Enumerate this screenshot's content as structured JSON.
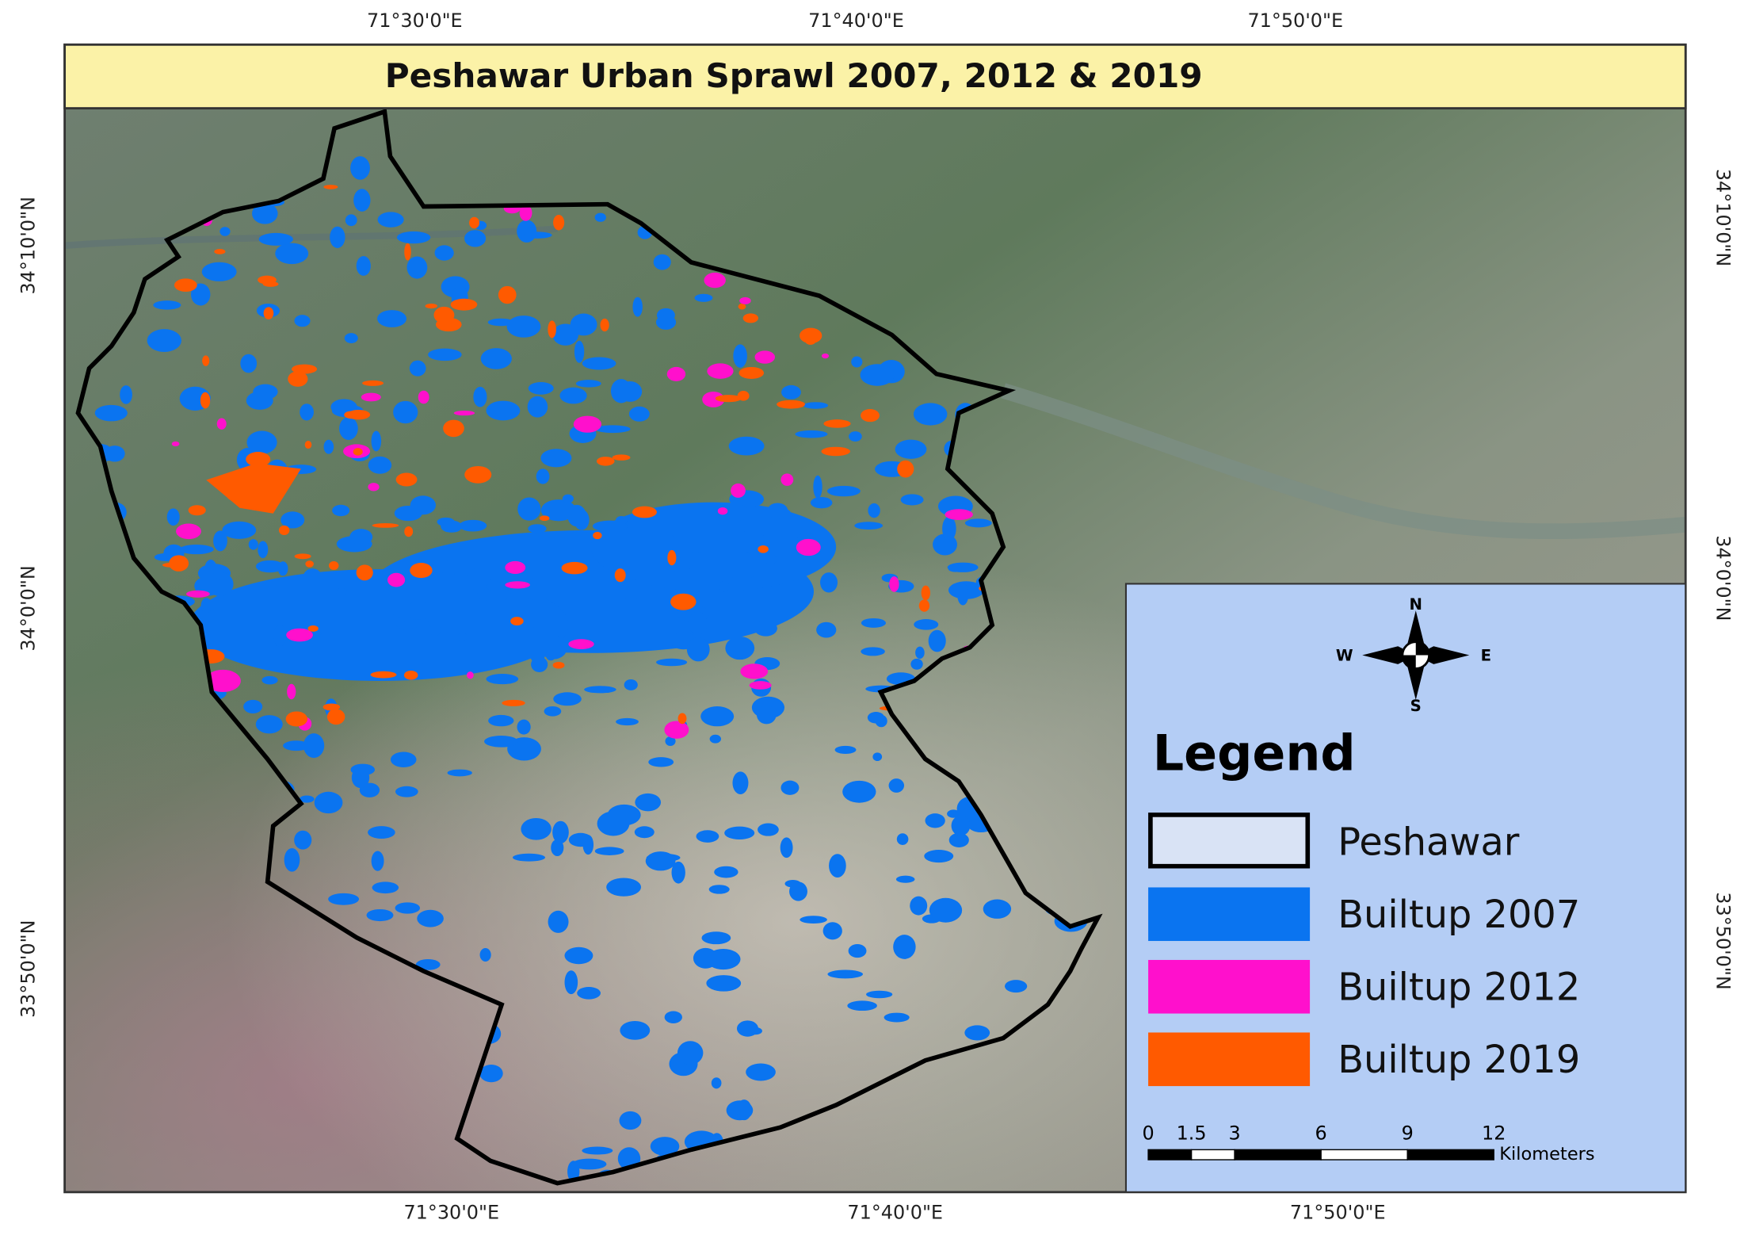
{
  "title": "Peshawar Urban Sprawl 2007, 2012 & 2019",
  "map": {
    "top_labels": [
      "71°30'0\"E",
      "71°40'0\"E",
      "71°50'0\"E"
    ],
    "bottom_labels": [
      "71°30'0\"E",
      "71°40'0\"E",
      "71°50'0\"E"
    ],
    "left_labels": [
      "34°10'0\"N",
      "34°0'0\"N",
      "33°50'0\"N"
    ],
    "right_labels": [
      "34°10'0\"N",
      "34°0'0\"N",
      "33°50'0\"N"
    ]
  },
  "compass": {
    "n": "N",
    "e": "E",
    "s": "S",
    "w": "W"
  },
  "legend": {
    "title": "Legend",
    "items": [
      {
        "label": "Peshawar",
        "color": "#000000"
      },
      {
        "label": "Builtup 2007",
        "color": "#0a74f0"
      },
      {
        "label": "Builtup 2012",
        "color": "#ff10cc"
      },
      {
        "label": "Builtup 2019",
        "color": "#ff5a00"
      }
    ]
  },
  "scale_bar": {
    "ticks": [
      0,
      1.5,
      3,
      6,
      9,
      12
    ],
    "unit": "Kilometers"
  }
}
